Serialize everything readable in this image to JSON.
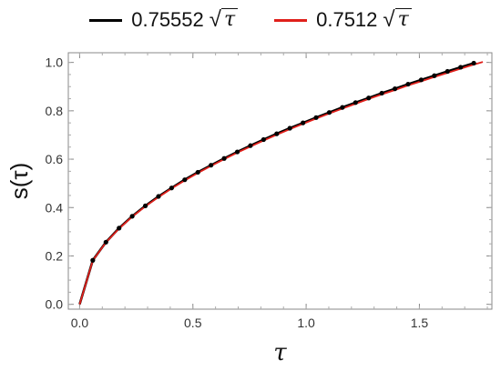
{
  "chart_data": {
    "type": "line",
    "xlabel": "τ",
    "ylabel": "s(τ)",
    "xlim": [
      -0.05,
      1.82
    ],
    "ylim": [
      -0.02,
      1.04
    ],
    "xticks": [
      "0.0",
      "0.5",
      "1.0",
      "1.5"
    ],
    "yticks": [
      "0.0",
      "0.2",
      "0.4",
      "0.6",
      "0.8",
      "1.0"
    ],
    "legend_position": "top",
    "grid": false,
    "series": [
      {
        "name_value": "0.75552",
        "name_symbol": "τ",
        "color": "#000000",
        "coefficient": 0.75552,
        "x": [
          0.0,
          0.058,
          0.116,
          0.174,
          0.232,
          0.29,
          0.348,
          0.406,
          0.464,
          0.522,
          0.58,
          0.638,
          0.696,
          0.754,
          0.812,
          0.87,
          0.928,
          0.986,
          1.044,
          1.102,
          1.16,
          1.218,
          1.276,
          1.334,
          1.392,
          1.45,
          1.508,
          1.566,
          1.624,
          1.682,
          1.74
        ],
        "y": [
          0.0,
          0.182,
          0.257,
          0.315,
          0.364,
          0.407,
          0.446,
          0.481,
          0.515,
          0.546,
          0.575,
          0.603,
          0.63,
          0.656,
          0.681,
          0.705,
          0.728,
          0.75,
          0.772,
          0.793,
          0.814,
          0.834,
          0.853,
          0.873,
          0.891,
          0.91,
          0.928,
          0.945,
          0.963,
          0.98,
          0.997
        ],
        "markers": true
      },
      {
        "name_value": "0.7512",
        "name_symbol": "τ",
        "color": "#e0201b",
        "coefficient": 0.7512,
        "x": [
          0.0,
          0.058,
          0.116,
          0.174,
          0.232,
          0.29,
          0.348,
          0.406,
          0.464,
          0.522,
          0.58,
          0.638,
          0.696,
          0.754,
          0.812,
          0.87,
          0.928,
          0.986,
          1.044,
          1.102,
          1.16,
          1.218,
          1.276,
          1.334,
          1.392,
          1.45,
          1.508,
          1.566,
          1.624,
          1.682,
          1.74,
          1.78
        ],
        "y": [
          0.0,
          0.181,
          0.256,
          0.313,
          0.362,
          0.405,
          0.443,
          0.479,
          0.512,
          0.543,
          0.572,
          0.6,
          0.627,
          0.652,
          0.677,
          0.701,
          0.724,
          0.746,
          0.768,
          0.789,
          0.809,
          0.829,
          0.849,
          0.868,
          0.886,
          0.905,
          0.922,
          0.94,
          0.957,
          0.974,
          0.991,
          1.002
        ],
        "markers": false
      }
    ]
  }
}
